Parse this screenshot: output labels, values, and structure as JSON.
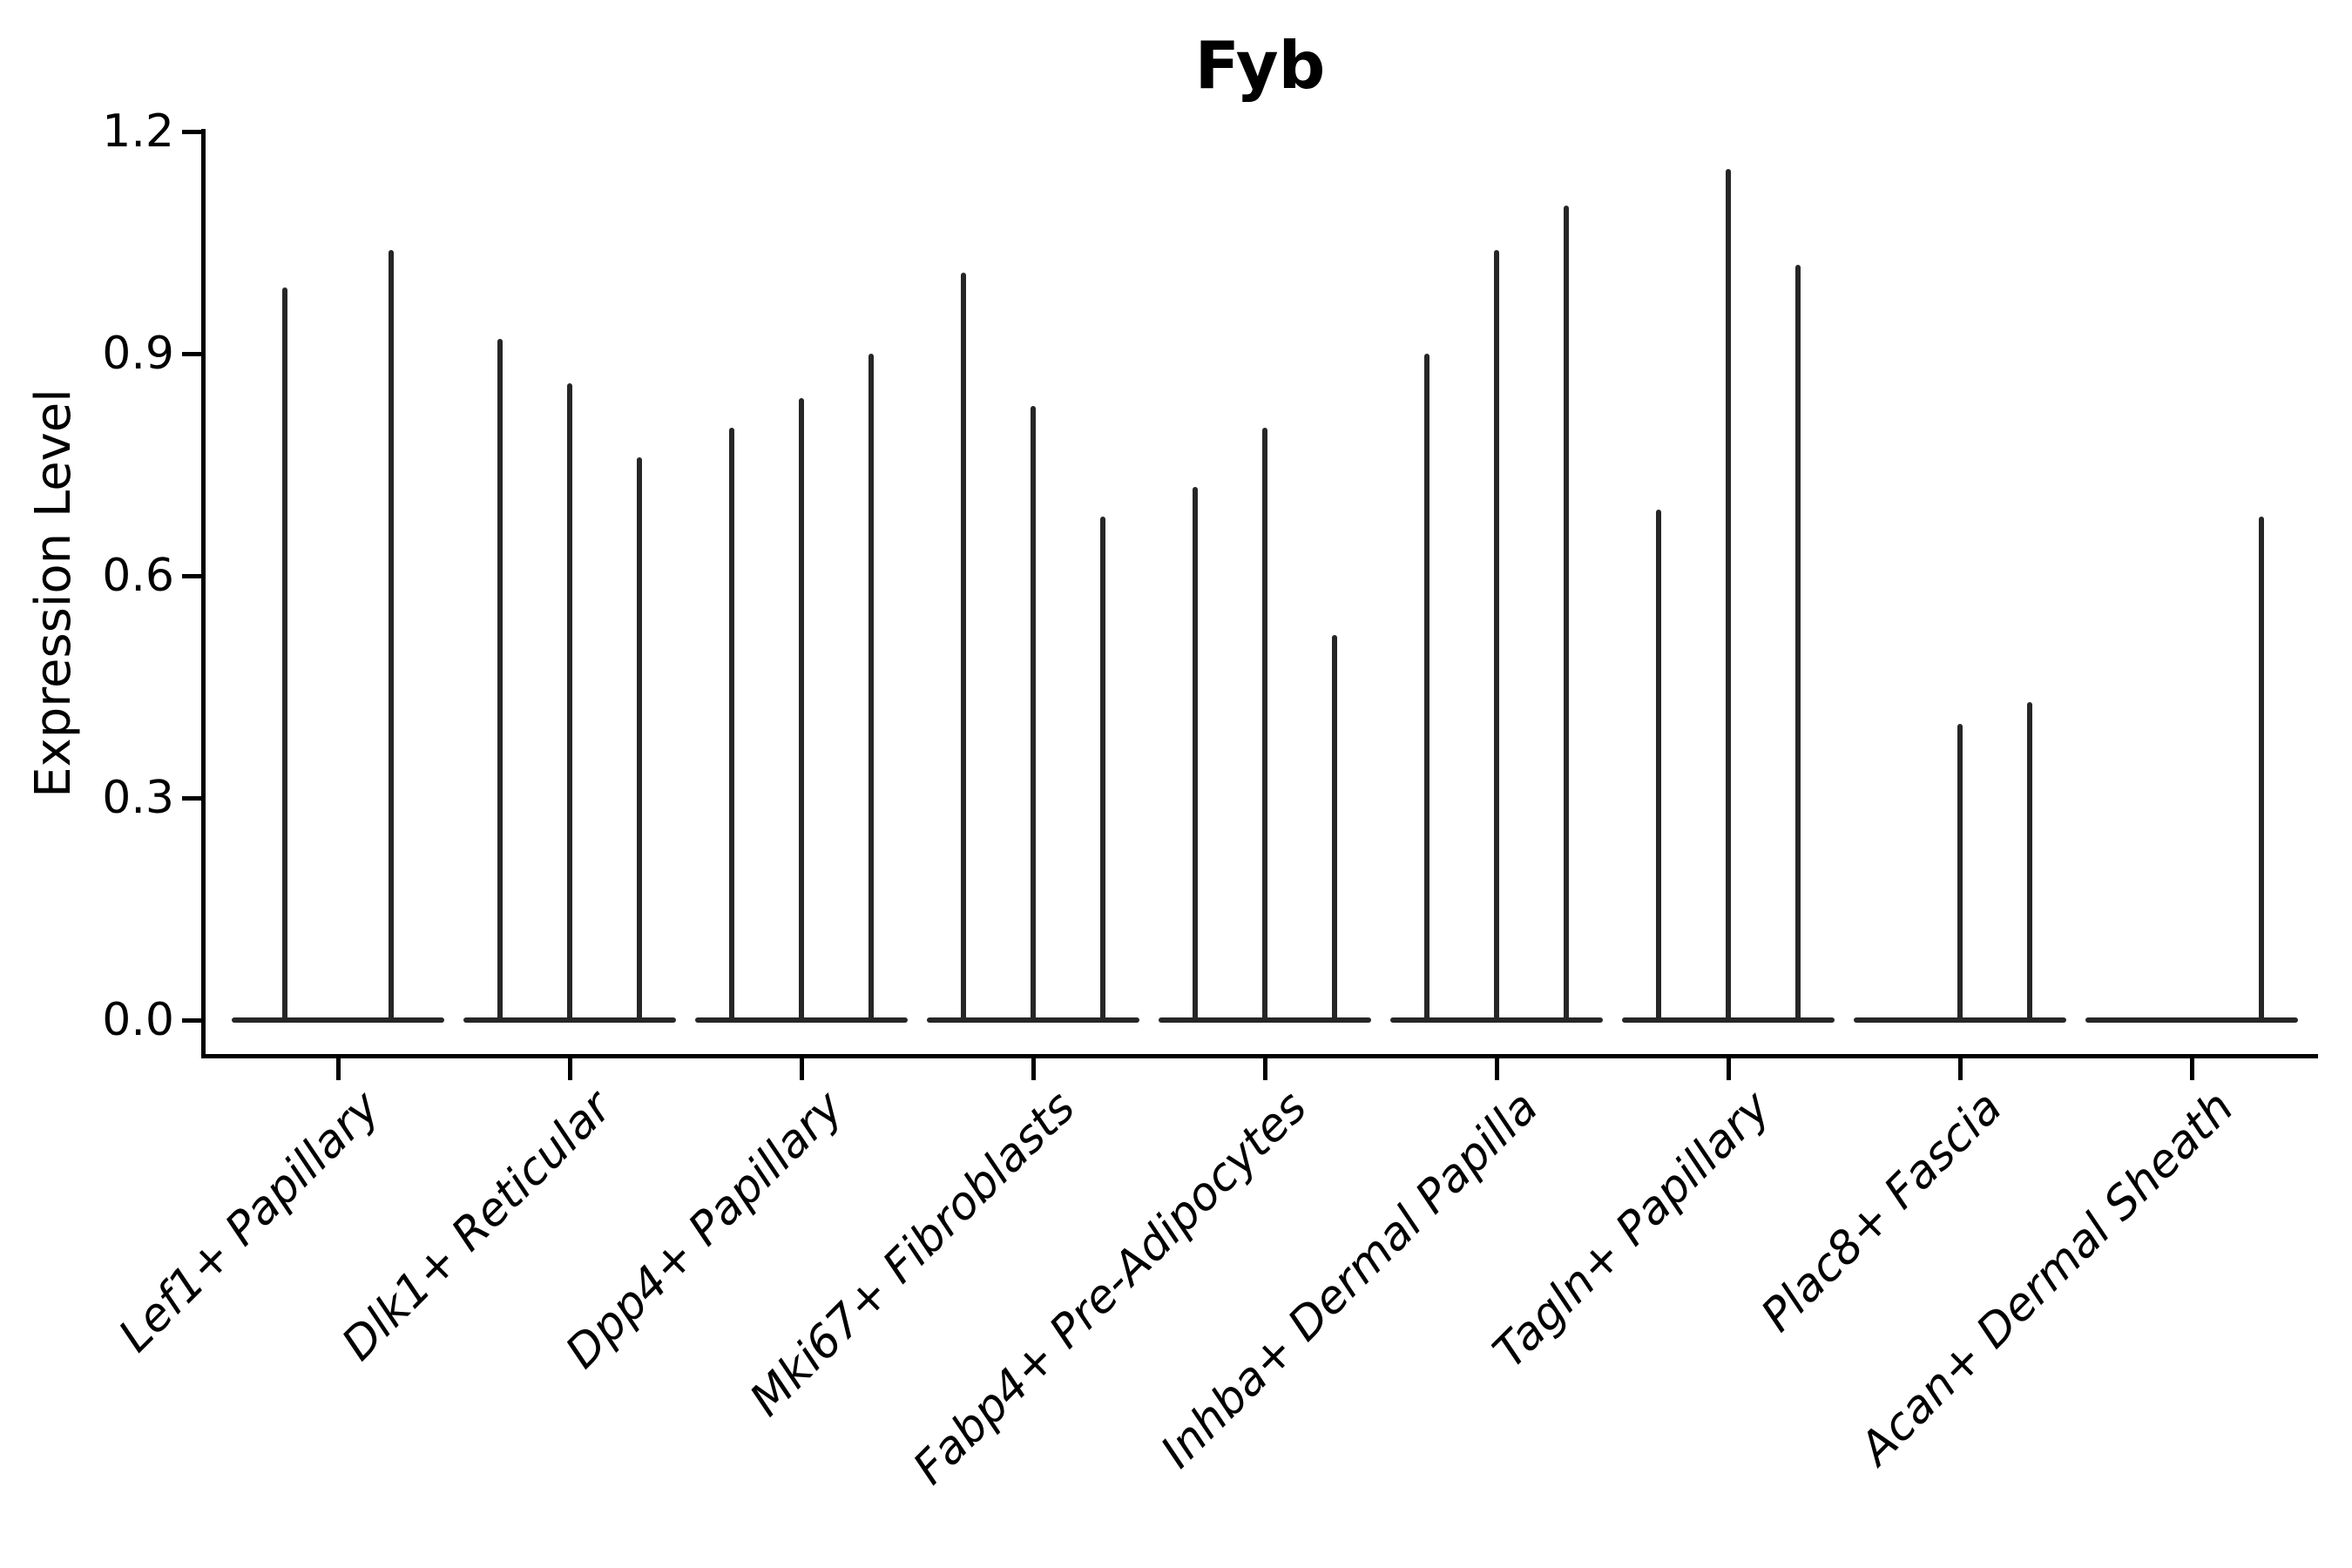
{
  "figure": {
    "title": "Fyb",
    "ylabel": "Expression Level"
  },
  "colors": {
    "violin": "#262626",
    "axis": "#000000",
    "text": "#000000",
    "background": "#ffffff"
  },
  "chart_data": {
    "type": "violin",
    "title": "Fyb",
    "xlabel": "",
    "ylabel": "Expression Level",
    "ylim": [
      -0.05,
      1.22
    ],
    "grid": false,
    "legend": "none",
    "ytick_values": [
      0.0,
      0.3,
      0.6,
      0.9,
      1.2
    ],
    "ytick_labels": [
      "0.0",
      "0.3",
      "0.6",
      "0.9",
      "1.2"
    ],
    "note": "Each cell-type group contains 2-3 narrow violins drawn as thin vertical spikes (tail maxima) over a flat base at expression 0; violin_peaks value 0 means a flat violin with no spike.",
    "groups": [
      {
        "label": "Lef1+ Papillary",
        "violin_peaks": [
          0.99,
          1.04
        ]
      },
      {
        "label": "Dlk1+ Reticular",
        "violin_peaks": [
          0.92,
          0.86,
          0.76
        ]
      },
      {
        "label": "Dpp4+ Papillary",
        "violin_peaks": [
          0.8,
          0.84,
          0.9
        ]
      },
      {
        "label": "Mki67+ Fibroblasts",
        "violin_peaks": [
          1.01,
          0.83,
          0.68
        ]
      },
      {
        "label": "Fabp4+ Pre-Adipocytes",
        "violin_peaks": [
          0.72,
          0.8,
          0.52
        ]
      },
      {
        "label": "Inhba+ Dermal Papilla",
        "violin_peaks": [
          0.9,
          1.04,
          1.1
        ]
      },
      {
        "label": "Tagln+ Papillary",
        "violin_peaks": [
          0.69,
          1.15,
          1.02
        ]
      },
      {
        "label": "Plac8+ Fascia",
        "violin_peaks": [
          0.0,
          0.4,
          0.43
        ]
      },
      {
        "label": "Acan+ Dermal Sheath",
        "violin_peaks": [
          0.0,
          0.0,
          0.68
        ]
      }
    ]
  }
}
